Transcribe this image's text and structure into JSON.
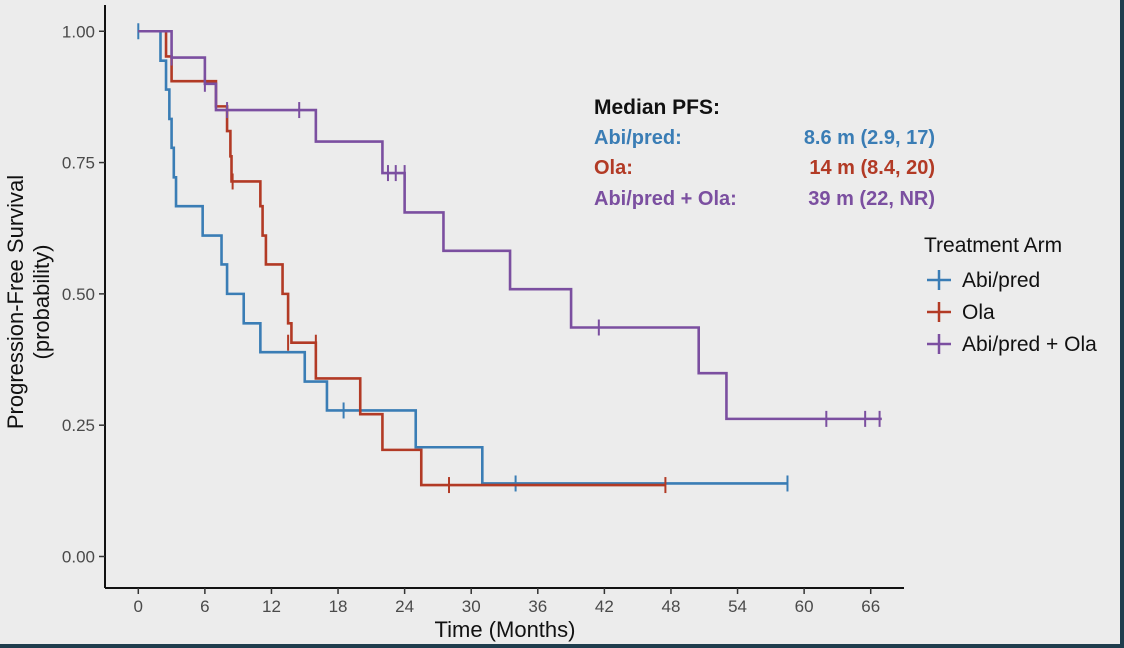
{
  "chart_data": {
    "type": "line",
    "xlabel": "Time (Months)",
    "ylabel_line1": "Progression-Free Survival",
    "ylabel_line2": "(probability)",
    "xticks": [
      0,
      6,
      12,
      18,
      24,
      30,
      36,
      42,
      48,
      54,
      60,
      66
    ],
    "xtick_labels": [
      "0",
      "6",
      "12",
      "18",
      "24",
      "30",
      "36",
      "42",
      "48",
      "54",
      "60",
      "66"
    ],
    "yticks": [
      0,
      0.25,
      0.5,
      0.75,
      1.0
    ],
    "ytick_labels": [
      "0.00",
      "0.25",
      "0.50",
      "0.75",
      "1.00"
    ],
    "xlim": [
      -3,
      69
    ],
    "ylim": [
      -0.06,
      1.05
    ],
    "legend": {
      "title": "Treatment Arm",
      "position": "right",
      "entries": [
        "Abi/pred",
        "Ola",
        "Abi/pred + Ola"
      ]
    },
    "annotation": {
      "title": "Median PFS:",
      "lines": [
        {
          "label": "Abi/pred:",
          "value": "8.6 m (2.9, 17)",
          "color": "#3a7db5"
        },
        {
          "label": "Ola:",
          "value": "14 m (8.4, 20)",
          "color": "#b23a25"
        },
        {
          "label": "Abi/pred + Ola:",
          "value": "39 m (22, NR)",
          "color": "#7b4fa0"
        }
      ]
    },
    "series": [
      {
        "name": "Abi/pred",
        "color": "#3a7db5",
        "steps": [
          [
            0,
            1.0
          ],
          [
            2,
            0.944
          ],
          [
            2.5,
            0.889
          ],
          [
            2.8,
            0.833
          ],
          [
            3,
            0.778
          ],
          [
            3.2,
            0.722
          ],
          [
            3.4,
            0.667
          ],
          [
            5.8,
            0.611
          ],
          [
            7.5,
            0.556
          ],
          [
            8,
            0.5
          ],
          [
            9.5,
            0.444
          ],
          [
            11,
            0.389
          ],
          [
            15,
            0.333
          ],
          [
            17,
            0.278
          ],
          [
            25,
            0.208
          ],
          [
            31,
            0.139
          ],
          [
            58.5,
            0.139
          ]
        ],
        "censors": [
          [
            0,
            1.0
          ],
          [
            18.5,
            0.278
          ],
          [
            34,
            0.139
          ],
          [
            58.5,
            0.139
          ]
        ]
      },
      {
        "name": "Ola",
        "color": "#b23a25",
        "steps": [
          [
            0,
            1.0
          ],
          [
            2.5,
            0.952
          ],
          [
            3,
            0.905
          ],
          [
            7,
            0.857
          ],
          [
            8,
            0.81
          ],
          [
            8.3,
            0.762
          ],
          [
            8.4,
            0.714
          ],
          [
            11,
            0.667
          ],
          [
            11.2,
            0.611
          ],
          [
            11.5,
            0.556
          ],
          [
            13,
            0.5
          ],
          [
            13.5,
            0.444
          ],
          [
            13.8,
            0.407
          ],
          [
            16,
            0.339
          ],
          [
            20,
            0.271
          ],
          [
            22,
            0.203
          ],
          [
            25.5,
            0.136
          ],
          [
            47.5,
            0.136
          ]
        ],
        "censors": [
          [
            8.5,
            0.714
          ],
          [
            13.5,
            0.407
          ],
          [
            16,
            0.407
          ],
          [
            28,
            0.136
          ],
          [
            47.5,
            0.136
          ]
        ]
      },
      {
        "name": "Abi/pred + Ola",
        "color": "#7b4fa0",
        "steps": [
          [
            0,
            1.0
          ],
          [
            3,
            0.95
          ],
          [
            6,
            0.9
          ],
          [
            7,
            0.85
          ],
          [
            16,
            0.79
          ],
          [
            22,
            0.73
          ],
          [
            24,
            0.655
          ],
          [
            27.5,
            0.582
          ],
          [
            33.5,
            0.509
          ],
          [
            39,
            0.436
          ],
          [
            50.5,
            0.349
          ],
          [
            53,
            0.262
          ],
          [
            67,
            0.262
          ]
        ],
        "censors": [
          [
            3,
            0.95
          ],
          [
            6,
            0.9
          ],
          [
            8,
            0.85
          ],
          [
            14.5,
            0.85
          ],
          [
            22.5,
            0.73
          ],
          [
            23.2,
            0.73
          ],
          [
            24,
            0.73
          ],
          [
            41.5,
            0.436
          ],
          [
            62,
            0.262
          ],
          [
            65.5,
            0.262
          ],
          [
            66.8,
            0.262
          ]
        ]
      }
    ]
  }
}
